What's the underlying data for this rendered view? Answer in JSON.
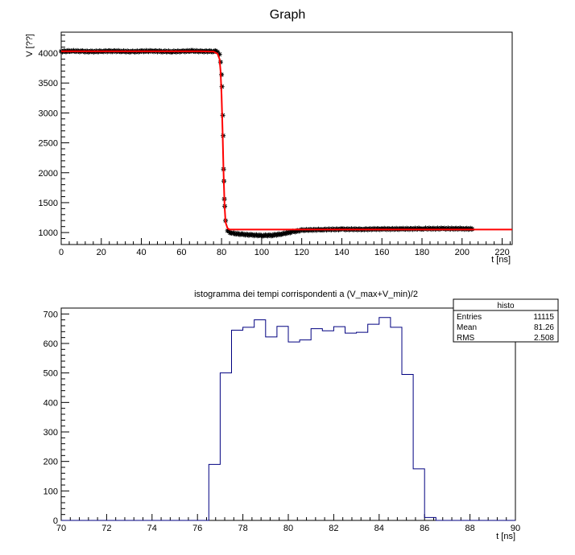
{
  "chart_data": [
    {
      "type": "scatter",
      "title": "Graph",
      "xlabel": "t [ns]",
      "ylabel": "V [??]",
      "xlim": [
        0,
        225
      ],
      "ylim": [
        800,
        4350
      ],
      "x_ticks": [
        0,
        20,
        40,
        60,
        80,
        100,
        120,
        140,
        160,
        180,
        200,
        220
      ],
      "y_ticks": [
        1000,
        1500,
        2000,
        2500,
        3000,
        3500,
        4000
      ],
      "grid": false,
      "series": [
        {
          "kind": "markers",
          "marker": "asterisk",
          "color": "#000000",
          "points": [
            [
              0,
              4030
            ],
            [
              5,
              4035
            ],
            [
              10,
              4030
            ],
            [
              15,
              4025
            ],
            [
              20,
              4030
            ],
            [
              25,
              4035
            ],
            [
              30,
              4030
            ],
            [
              35,
              4025
            ],
            [
              40,
              4030
            ],
            [
              45,
              4035
            ],
            [
              50,
              4030
            ],
            [
              55,
              4025
            ],
            [
              60,
              4030
            ],
            [
              65,
              4035
            ],
            [
              70,
              4030
            ],
            [
              75,
              4030
            ],
            [
              77,
              4030
            ],
            [
              78,
              4020
            ],
            [
              79,
              3980
            ],
            [
              79.5,
              3850
            ],
            [
              80.0,
              3640
            ],
            [
              80.2,
              3440
            ],
            [
              80.6,
              2960
            ],
            [
              80.8,
              2620
            ],
            [
              81.0,
              2060
            ],
            [
              81.2,
              1860
            ],
            [
              81.4,
              1560
            ],
            [
              81.6,
              1440
            ],
            [
              82.0,
              1200
            ],
            [
              83,
              1030
            ],
            [
              85,
              990
            ],
            [
              90,
              970
            ],
            [
              95,
              960
            ],
            [
              100,
              950
            ],
            [
              105,
              955
            ],
            [
              110,
              975
            ],
            [
              115,
              1010
            ],
            [
              120,
              1040
            ],
            [
              130,
              1050
            ],
            [
              140,
              1055
            ],
            [
              150,
              1055
            ],
            [
              160,
              1060
            ],
            [
              170,
              1060
            ],
            [
              180,
              1065
            ],
            [
              190,
              1065
            ],
            [
              200,
              1065
            ],
            [
              205,
              1060
            ]
          ]
        },
        {
          "kind": "line",
          "name": "",
          "color": "#ff0000",
          "points": [
            [
              0,
              4030
            ],
            [
              70,
              4030
            ],
            [
              76,
              4025
            ],
            [
              78,
              3990
            ],
            [
              79,
              3900
            ],
            [
              79.5,
              3700
            ],
            [
              80,
              3300
            ],
            [
              80.5,
              2700
            ],
            [
              81,
              2000
            ],
            [
              81.5,
              1450
            ],
            [
              82,
              1170
            ],
            [
              83,
              1070
            ],
            [
              84,
              1050
            ],
            [
              100,
              1050
            ],
            [
              150,
              1050
            ],
            [
              200,
              1050
            ],
            [
              225,
              1050
            ]
          ]
        }
      ]
    },
    {
      "type": "histogram",
      "title": "istogramma dei tempi corrispondenti a (V_max+V_min)/2",
      "xlabel": "t [ns]",
      "ylabel": "",
      "xlim": [
        70,
        90
      ],
      "ylim": [
        0,
        720
      ],
      "x_ticks": [
        70,
        72,
        74,
        76,
        78,
        80,
        82,
        84,
        86,
        88,
        90
      ],
      "y_ticks": [
        0,
        100,
        200,
        300,
        400,
        500,
        600,
        700
      ],
      "grid": false,
      "color": "#000080",
      "bin_width": 0.5,
      "bin_edges_start": 70,
      "values": [
        0,
        0,
        0,
        0,
        0,
        0,
        0,
        0,
        0,
        0,
        0,
        0,
        0,
        190,
        500,
        645,
        655,
        680,
        622,
        658,
        605,
        612,
        650,
        643,
        657,
        635,
        638,
        665,
        688,
        655,
        495,
        175,
        10,
        0,
        0,
        0,
        0,
        0,
        0,
        0
      ],
      "stats_box": {
        "title": "histo",
        "rows": [
          {
            "label": "Entries",
            "value": "11115"
          },
          {
            "label": "Mean",
            "value": "81.26"
          },
          {
            "label": "RMS",
            "value": "2.508"
          }
        ]
      }
    }
  ]
}
